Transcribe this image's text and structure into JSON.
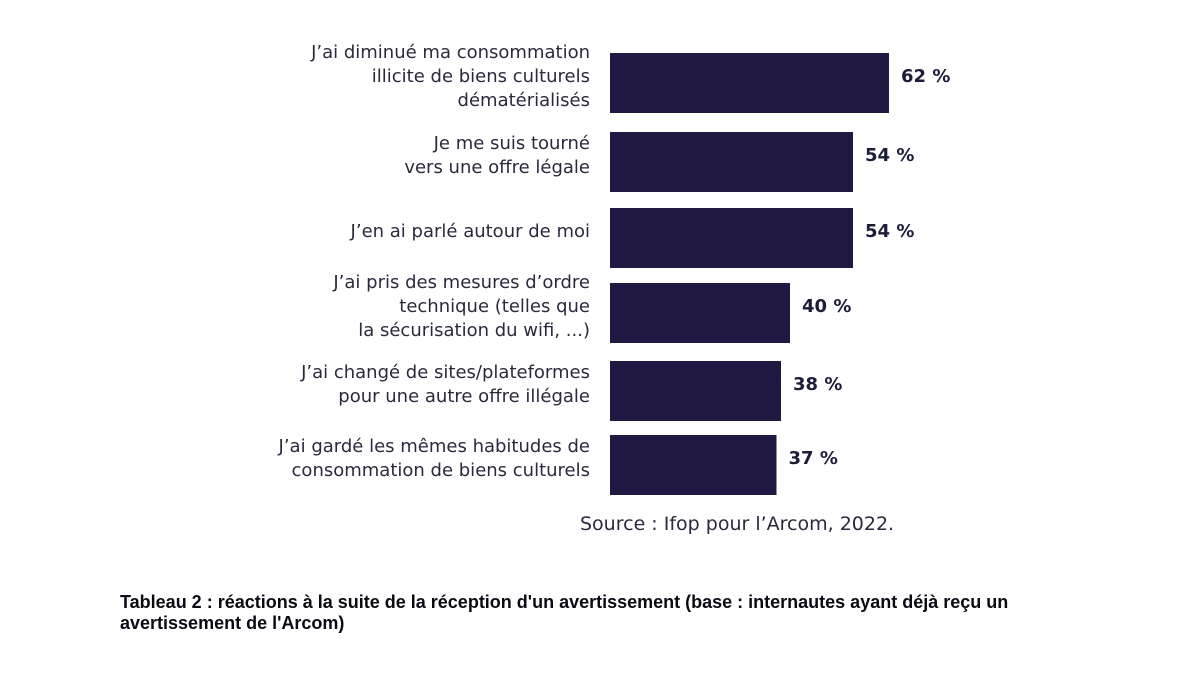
{
  "chart_data": {
    "type": "bar",
    "orientation": "horizontal",
    "categories": [
      [
        "J’ai diminué ma consommation",
        "illicite de biens culturels",
        "dématérialisés"
      ],
      [
        "Je me suis tourné",
        "vers une offre légale"
      ],
      [
        "J’en ai parlé autour de moi"
      ],
      [
        "J’ai pris des mesures d’ordre",
        "technique (telles que",
        "la sécurisation du wifi, ...)"
      ],
      [
        "J’ai changé de sites/plateformes",
        "pour une autre offre illégale"
      ],
      [
        "J’ai gardé les mêmes habitudes de",
        "consommation de biens culturels"
      ]
    ],
    "values": [
      62,
      54,
      54,
      40,
      38,
      37
    ],
    "value_labels": [
      "62 %",
      "54 %",
      "54 %",
      "40 %",
      "38 %",
      "37 %"
    ],
    "xlim": [
      0,
      100
    ],
    "bar_color": "#221942",
    "grid": false,
    "legend": "none"
  },
  "source": "Source : Ifop pour l’Arcom, 2022.",
  "caption": "Tableau 2 : réactions à la suite de la réception d'un avertissement (base : internautes ayant déjà reçu un avertissement de l'Arcom)"
}
